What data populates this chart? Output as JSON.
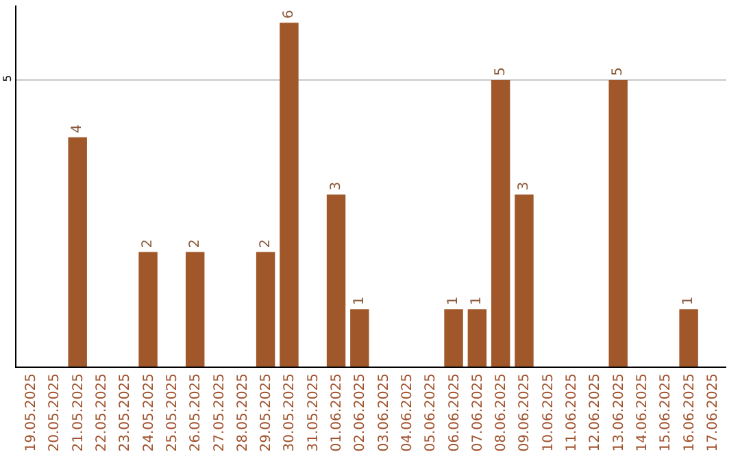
{
  "chart_data": {
    "type": "bar",
    "categories": [
      "19.05.2025",
      "20.05.2025",
      "21.05.2025",
      "22.05.2025",
      "23.05.2025",
      "24.05.2025",
      "25.05.2025",
      "26.05.2025",
      "27.05.2025",
      "28.05.2025",
      "29.05.2025",
      "30.05.2025",
      "31.05.2025",
      "01.06.2025",
      "02.06.2025",
      "03.06.2025",
      "04.06.2025",
      "05.06.2025",
      "06.06.2025",
      "07.06.2025",
      "08.06.2025",
      "09.06.2025",
      "10.06.2025",
      "11.06.2025",
      "12.06.2025",
      "13.06.2025",
      "14.06.2025",
      "15.06.2025",
      "16.06.2025",
      "17.06.2025"
    ],
    "values": [
      0,
      0,
      4,
      0,
      0,
      2,
      0,
      2,
      0,
      0,
      2,
      6,
      0,
      3,
      1,
      0,
      0,
      0,
      1,
      1,
      5,
      3,
      0,
      0,
      0,
      5,
      0,
      0,
      1,
      0
    ],
    "value_labels": [
      null,
      null,
      "4",
      null,
      null,
      "2",
      null,
      "2",
      null,
      null,
      "2",
      "6",
      null,
      "3",
      "1",
      null,
      null,
      null,
      "1",
      "1",
      "5",
      "3",
      null,
      null,
      null,
      "5",
      null,
      null,
      "1",
      null
    ],
    "color": "#a0582a",
    "ylim": [
      0,
      6.3
    ],
    "yticks": [
      5
    ],
    "grid": "y"
  }
}
